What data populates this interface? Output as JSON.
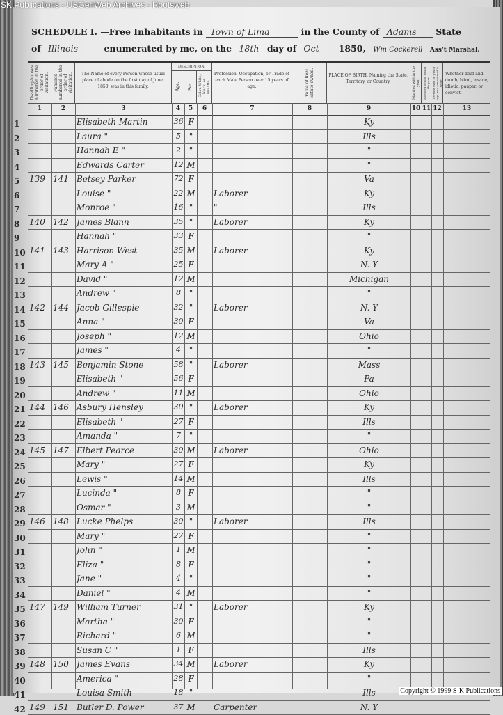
{
  "watermark": "SK Publications - USGenWeb Archives - Rootsweb",
  "copyright": "Copyright © 1999 S-K Publications",
  "header": {
    "schedule": "SCHEDULE I.",
    "free_inhabitants": "—Free Inhabitants in",
    "township": "Town of Lima",
    "county_label": "in the County of",
    "county": "Adams",
    "state_label": "State",
    "of": "of",
    "state": "Illinois",
    "enumerated": "enumerated by me, on the",
    "day": "18th",
    "day_of": "day of",
    "month": "Oct",
    "year": "1850,",
    "marshal_signature": "Wm Cockerell",
    "marshal_label": "Ass't Marshal."
  },
  "columns": {
    "c1": "Dwelling-houses numbered in the order of visitation.",
    "c2": "Families numbered in the order of visitation.",
    "c3": "The Name of every Person whose usual place of abode on the first day of June, 1850, was in this family.",
    "description": "DESCRIPTION.",
    "c4": "Age.",
    "c5": "Sex.",
    "c6": "Color, White, black, or mulatto.",
    "c7": "Profession, Occupation, or Trade of each Male Person over 15 years of age.",
    "c8": "Value of Real Estate owned.",
    "c9": "PLACE OF BIRTH. Naming the State, Territory, or Country.",
    "c10": "Married within the year.",
    "c11": "Attended School within the year.",
    "c12": "Persons over 20 y'rs of age who cannot read & write.",
    "c13": "Whether deaf and dumb, blind, insane, idiotic, pauper, or convict.",
    "numbers": [
      "1",
      "2",
      "3",
      "4",
      "5",
      "6",
      "7",
      "8",
      "9",
      "10",
      "11",
      "12",
      "13"
    ]
  },
  "rows": [
    [
      "1",
      "",
      "",
      "Elisabeth Martin",
      "36",
      "F",
      "",
      "",
      "",
      "Ky"
    ],
    [
      "2",
      "",
      "",
      "Laura  \"",
      "5",
      "\"",
      "",
      "",
      "",
      "Ills"
    ],
    [
      "3",
      "",
      "",
      "Hannah E  \"",
      "2",
      "\"",
      "",
      "",
      "",
      "\""
    ],
    [
      "4",
      "",
      "",
      "Edwards Carter",
      "12",
      "M",
      "",
      "",
      "",
      "\""
    ],
    [
      "5",
      "139",
      "141",
      "Betsey Parker",
      "72",
      "F",
      "",
      "",
      "",
      "Va"
    ],
    [
      "6",
      "",
      "",
      "Louise  \"",
      "22",
      "M",
      "",
      "Laborer",
      "",
      "Ky"
    ],
    [
      "7",
      "",
      "",
      "Monroe  \"",
      "16",
      "\"",
      "",
      "\"",
      "",
      "Ills"
    ],
    [
      "8",
      "140",
      "142",
      "James Blann",
      "35",
      "\"",
      "",
      "Laborer",
      "",
      "Ky"
    ],
    [
      "9",
      "",
      "",
      "Hannah  \"",
      "33",
      "F",
      "",
      "",
      "",
      "\""
    ],
    [
      "10",
      "141",
      "143",
      "Harrison West",
      "35",
      "M",
      "",
      "Laborer",
      "",
      "Ky"
    ],
    [
      "11",
      "",
      "",
      "Mary A  \"",
      "25",
      "F",
      "",
      "",
      "",
      "N. Y"
    ],
    [
      "12",
      "",
      "",
      "David  \"",
      "12",
      "M",
      "",
      "",
      "",
      "Michigan"
    ],
    [
      "13",
      "",
      "",
      "Andrew  \"",
      "8",
      "\"",
      "",
      "",
      "",
      "\""
    ],
    [
      "14",
      "142",
      "144",
      "Jacob Gillespie",
      "32",
      "\"",
      "",
      "Laborer",
      "",
      "N. Y"
    ],
    [
      "15",
      "",
      "",
      "Anna  \"",
      "30",
      "F",
      "",
      "",
      "",
      "Va"
    ],
    [
      "16",
      "",
      "",
      "Joseph  \"",
      "12",
      "M",
      "",
      "",
      "",
      "Ohio"
    ],
    [
      "17",
      "",
      "",
      "James  \"",
      "4",
      "\"",
      "",
      "",
      "",
      "\""
    ],
    [
      "18",
      "143",
      "145",
      "Benjamin Stone",
      "58",
      "\"",
      "",
      "Laborer",
      "",
      "Mass"
    ],
    [
      "19",
      "",
      "",
      "Elisabeth  \"",
      "56",
      "F",
      "",
      "",
      "",
      "Pa"
    ],
    [
      "20",
      "",
      "",
      "Andrew  \"",
      "11",
      "M",
      "",
      "",
      "",
      "Ohio"
    ],
    [
      "21",
      "144",
      "146",
      "Asbury Hensley",
      "30",
      "\"",
      "",
      "Laborer",
      "",
      "Ky"
    ],
    [
      "22",
      "",
      "",
      "Elisabeth  \"",
      "27",
      "F",
      "",
      "",
      "",
      "Ills"
    ],
    [
      "23",
      "",
      "",
      "Amanda  \"",
      "7",
      "\"",
      "",
      "",
      "",
      "\""
    ],
    [
      "24",
      "145",
      "147",
      "Elbert Pearce",
      "30",
      "M",
      "",
      "Laborer",
      "",
      "Ohio"
    ],
    [
      "25",
      "",
      "",
      "Mary  \"",
      "27",
      "F",
      "",
      "",
      "",
      "Ky"
    ],
    [
      "26",
      "",
      "",
      "Lewis  \"",
      "14",
      "M",
      "",
      "",
      "",
      "Ills"
    ],
    [
      "27",
      "",
      "",
      "Lucinda  \"",
      "8",
      "F",
      "",
      "",
      "",
      "\""
    ],
    [
      "28",
      "",
      "",
      "Osmar  \"",
      "3",
      "M",
      "",
      "",
      "",
      "\""
    ],
    [
      "29",
      "146",
      "148",
      "Lucke Phelps",
      "30",
      "\"",
      "",
      "Laborer",
      "",
      "Ills"
    ],
    [
      "30",
      "",
      "",
      "Mary  \"",
      "27",
      "F",
      "",
      "",
      "",
      "\""
    ],
    [
      "31",
      "",
      "",
      "John  \"",
      "1",
      "M",
      "",
      "",
      "",
      "\""
    ],
    [
      "32",
      "",
      "",
      "Eliza  \"",
      "8",
      "F",
      "",
      "",
      "",
      "\""
    ],
    [
      "33",
      "",
      "",
      "Jane  \"",
      "4",
      "\"",
      "",
      "",
      "",
      "\""
    ],
    [
      "34",
      "",
      "",
      "Daniel  \"",
      "4",
      "M",
      "",
      "",
      "",
      "\""
    ],
    [
      "35",
      "147",
      "149",
      "William Turner",
      "31",
      "\"",
      "",
      "Laborer",
      "",
      "Ky"
    ],
    [
      "36",
      "",
      "",
      "Martha  \"",
      "30",
      "F",
      "",
      "",
      "",
      "\""
    ],
    [
      "37",
      "",
      "",
      "Richard  \"",
      "6",
      "M",
      "",
      "",
      "",
      "\""
    ],
    [
      "38",
      "",
      "",
      "Susan C  \"",
      "1",
      "F",
      "",
      "",
      "",
      "Ills"
    ],
    [
      "39",
      "148",
      "150",
      "James Evans",
      "34",
      "M",
      "",
      "Laborer",
      "",
      "Ky"
    ],
    [
      "40",
      "",
      "",
      "America  \"",
      "28",
      "F",
      "",
      "",
      "",
      "\""
    ],
    [
      "41",
      "",
      "",
      "Louisa Smith",
      "18",
      "\"",
      "",
      "",
      "",
      "Ills"
    ],
    [
      "42",
      "149",
      "151",
      "Butler D. Power",
      "37",
      "M",
      "",
      "Carpenter",
      "",
      "N. Y"
    ]
  ]
}
